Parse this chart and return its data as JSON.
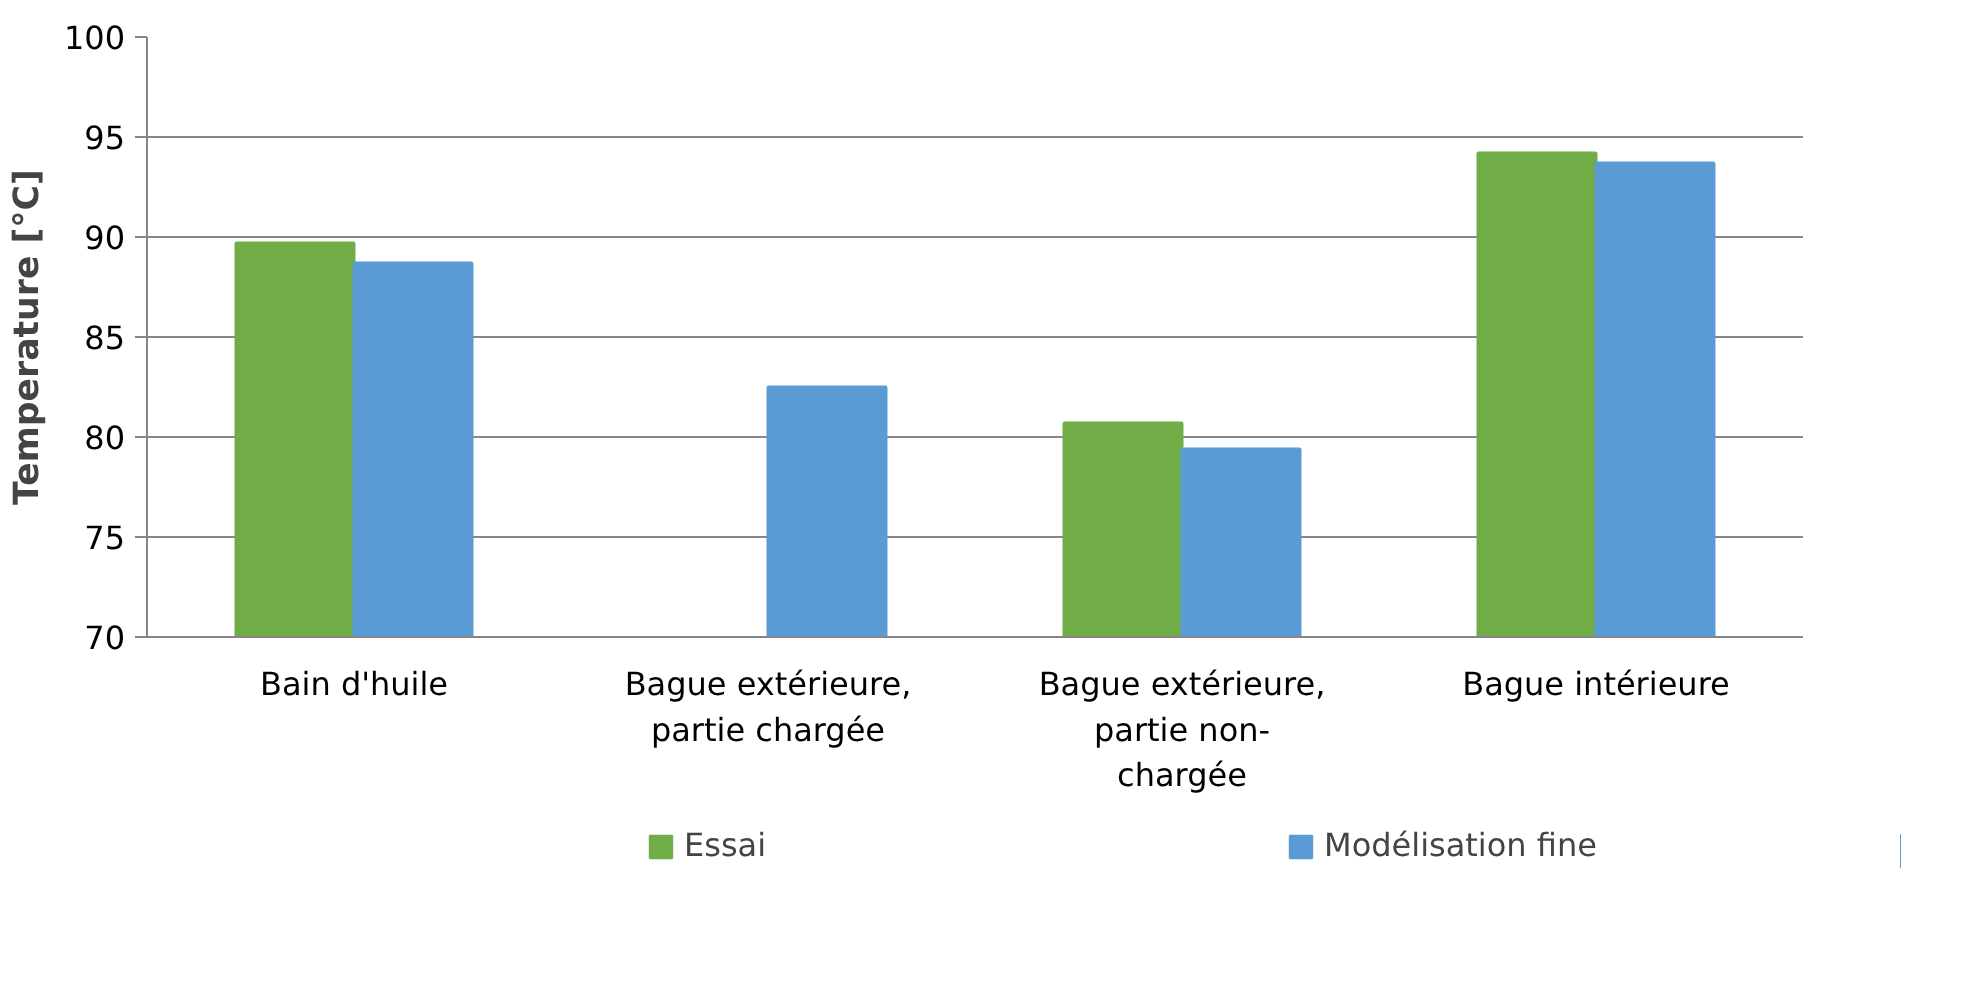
{
  "chart_data": {
    "type": "bar",
    "ylabel": "Temperature [°C]",
    "categories": [
      "Bain d'huile",
      "Bague extérieure, partie chargée",
      "Bague extérieure, partie non-chargée",
      "Bague intérieure"
    ],
    "series": [
      {
        "name": "Essai",
        "color": "#70ad47",
        "values": [
          89.7,
          null,
          80.7,
          94.2
        ]
      },
      {
        "name": "Modélisation fine",
        "color": "#5b9bd5",
        "values": [
          88.7,
          82.5,
          79.4,
          93.7
        ]
      }
    ],
    "ylim": [
      70,
      100
    ],
    "yticks": [
      70,
      75,
      80,
      85,
      90,
      95,
      100
    ],
    "grid": "y",
    "legend": "bottom"
  }
}
